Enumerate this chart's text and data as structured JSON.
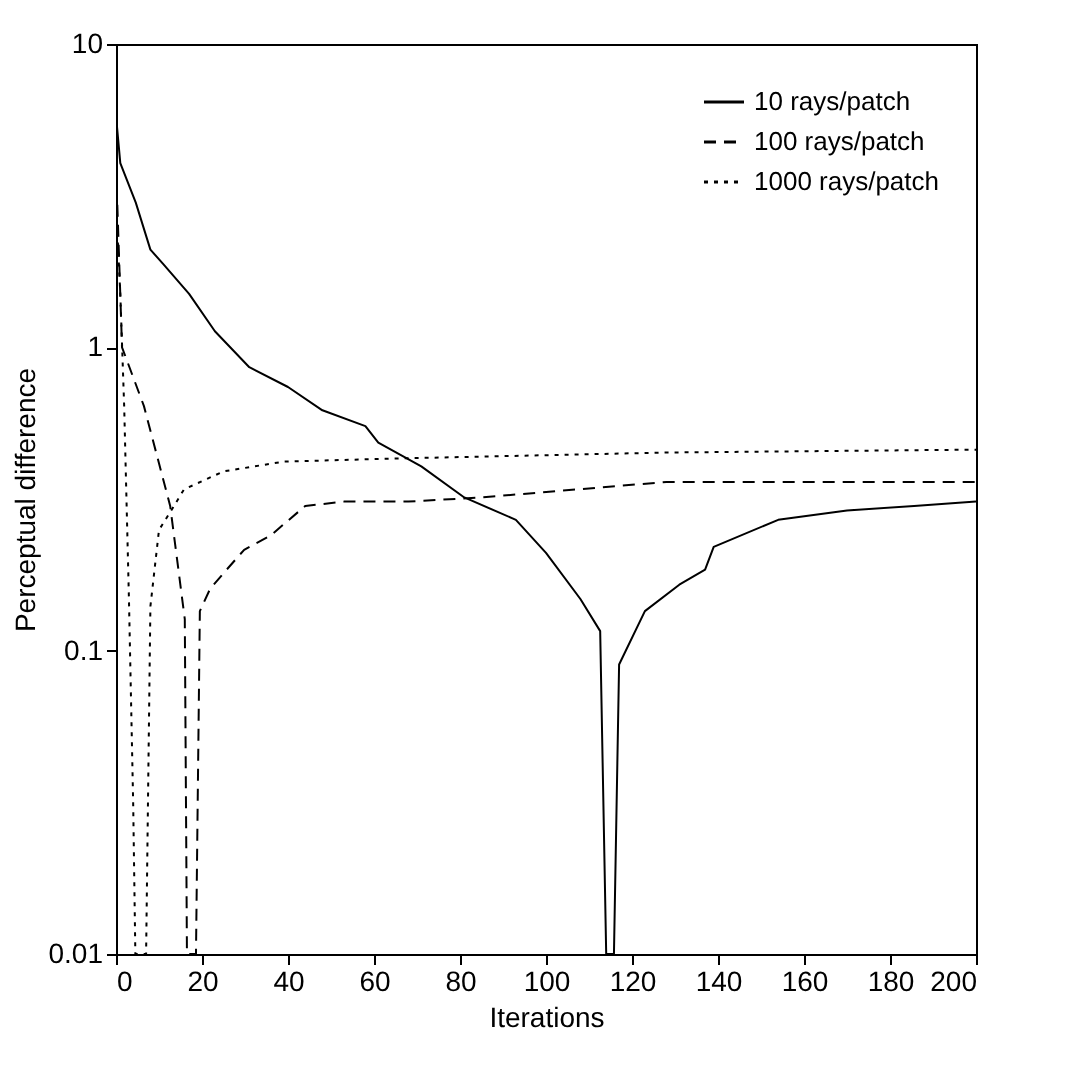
{
  "chart_data": {
    "type": "line",
    "xlabel": "Iterations",
    "ylabel": "Perceptual difference",
    "log": "y",
    "xlim": [
      0,
      200
    ],
    "xticks": [
      0,
      20,
      40,
      60,
      80,
      100,
      120,
      140,
      160,
      180,
      200
    ],
    "ylim": [
      0.01,
      10
    ],
    "yticks": [
      0.01,
      0.1,
      1,
      10
    ],
    "legend": "top right",
    "grid": false,
    "series": [
      {
        "name": "10 rays/patch",
        "color": "#000000",
        "line_style": "solid",
        "x": [
          0,
          1,
          4.6,
          8,
          11,
          17,
          23,
          31,
          40,
          48,
          58,
          61,
          71,
          81,
          93,
          100,
          108,
          112.6,
          114,
          115.8,
          117,
          123,
          131,
          137,
          139,
          154,
          170,
          185.6,
          200
        ],
        "values": [
          5.8,
          4.05,
          3.0,
          2.1,
          1.88,
          1.5,
          1.13,
          0.86,
          0.74,
          0.62,
          0.55,
          0.485,
          0.405,
          0.32,
          0.27,
          0.21,
          0.148,
          0.116,
          0.01,
          0.01,
          0.09,
          0.135,
          0.165,
          0.185,
          0.22,
          0.27,
          0.29,
          0.3,
          0.31
        ]
      },
      {
        "name": "100 rays/patch",
        "color": "#000000",
        "line_style": "dashed",
        "x": [
          0,
          1.4,
          6.5,
          12.6,
          16,
          16.5,
          18.6,
          19.5,
          21.9,
          25,
          29.8,
          36,
          44,
          53,
          68,
          85,
          128,
          200
        ],
        "values": [
          4,
          1.0,
          0.64,
          0.3,
          0.127,
          0.01,
          0.01,
          0.135,
          0.16,
          0.18,
          0.215,
          0.24,
          0.3,
          0.31,
          0.31,
          0.32,
          0.36,
          0.36
        ]
      },
      {
        "name": "1000 rays/patch",
        "color": "#000000",
        "line_style": "dotted",
        "x": [
          0,
          1,
          1.9,
          3,
          4,
          4.5,
          7,
          8,
          10,
          13.5,
          15.8,
          25,
          39,
          65,
          128,
          200
        ],
        "values": [
          3,
          1.5,
          0.64,
          0.15,
          0.031,
          0.01,
          0.01,
          0.14,
          0.25,
          0.3,
          0.34,
          0.39,
          0.42,
          0.43,
          0.45,
          0.46
        ]
      }
    ]
  }
}
